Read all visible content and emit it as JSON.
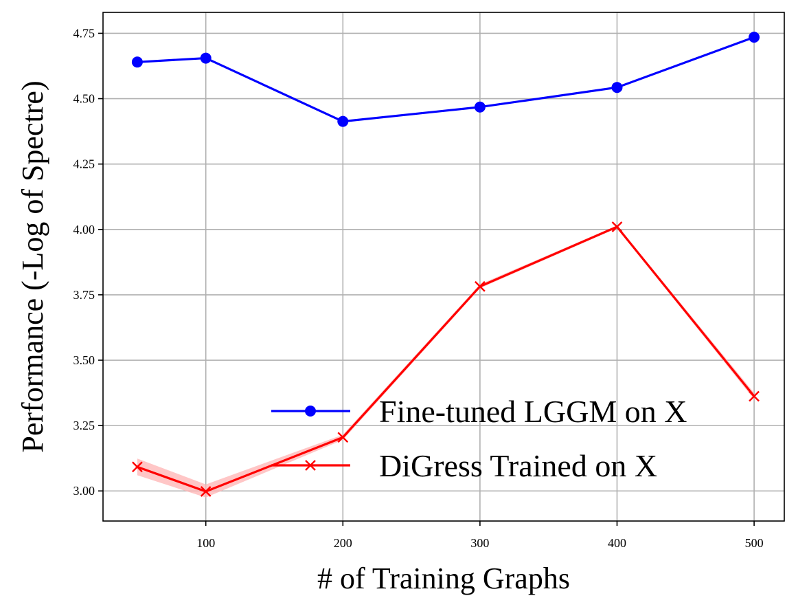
{
  "chart_data": {
    "type": "line",
    "xlabel": "# of Training Graphs",
    "ylabel": "Performance (-Log of Spectre)",
    "xlim": [
      25,
      522
    ],
    "ylim": [
      2.885,
      4.83
    ],
    "xticks": [
      100,
      200,
      300,
      400,
      500
    ],
    "yticks": [
      3.0,
      3.25,
      3.5,
      3.75,
      4.0,
      4.25,
      4.5,
      4.75
    ],
    "ytick_labels": [
      "3.00",
      "3.25",
      "3.50",
      "3.75",
      "4.00",
      "4.25",
      "4.50",
      "4.75"
    ],
    "grid": true,
    "legend_position": "lower right",
    "series": [
      {
        "name": "Fine-tuned LGGM on X",
        "color": "#0000ff",
        "marker": "circle",
        "x": [
          50,
          100,
          200,
          300,
          400,
          500
        ],
        "y": [
          4.64,
          4.655,
          4.413,
          4.468,
          4.543,
          4.735
        ]
      },
      {
        "name": "DiGress Trained on X",
        "color": "#ff0000",
        "band_color": "#ffb3b3",
        "marker": "x",
        "x": [
          50,
          100,
          200,
          300,
          400,
          500
        ],
        "y": [
          3.092,
          2.998,
          3.205,
          3.782,
          4.01,
          3.362
        ],
        "y_lower": [
          3.06,
          2.975,
          3.195,
          3.775,
          4.005,
          3.35
        ],
        "y_upper": [
          3.124,
          3.025,
          3.215,
          3.79,
          4.015,
          3.375
        ]
      }
    ]
  }
}
